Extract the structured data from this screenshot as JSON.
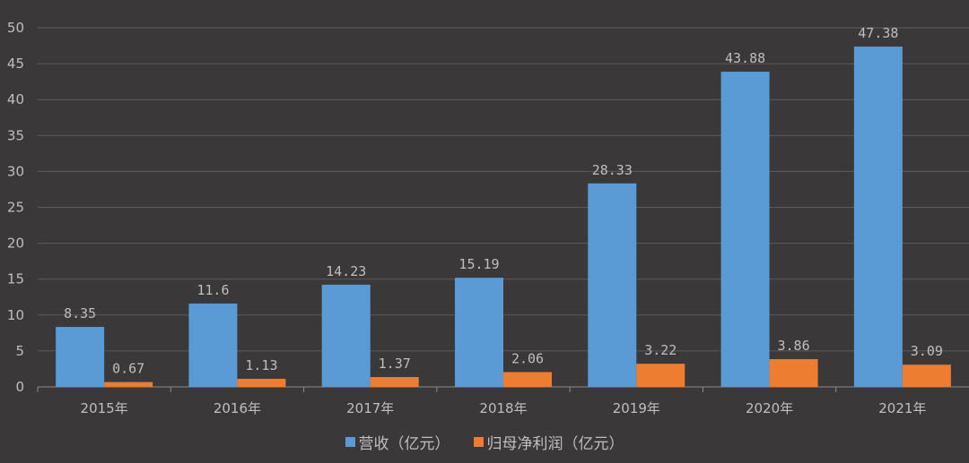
{
  "chart_data": {
    "type": "bar",
    "title": "",
    "xlabel": "",
    "ylabel": "",
    "ylim": [
      0,
      50
    ],
    "yticks": [
      0,
      5,
      10,
      15,
      20,
      25,
      30,
      35,
      40,
      45,
      50
    ],
    "categories": [
      "2015年",
      "2016年",
      "2017年",
      "2018年",
      "2019年",
      "2020年",
      "2021年"
    ],
    "series": [
      {
        "name": "营收（亿元）",
        "color": "#5b9bd5",
        "values": [
          8.35,
          11.6,
          14.23,
          15.19,
          28.33,
          43.88,
          47.38
        ],
        "labels": [
          "8.35",
          "11.6",
          "14.23",
          "15.19",
          "28.33",
          "43.88",
          "47.38"
        ]
      },
      {
        "name": "归母净利润（亿元）",
        "color": "#ed7d31",
        "values": [
          0.67,
          1.13,
          1.37,
          2.06,
          3.22,
          3.86,
          3.09
        ],
        "labels": [
          "0.67",
          "1.13",
          "1.37",
          "2.06",
          "3.22",
          "3.86",
          "3.09"
        ]
      }
    ],
    "legend_position": "bottom",
    "grid": true
  },
  "legend": {
    "series1_label": "营收（亿元）",
    "series2_label": "归母净利润（亿元）"
  }
}
